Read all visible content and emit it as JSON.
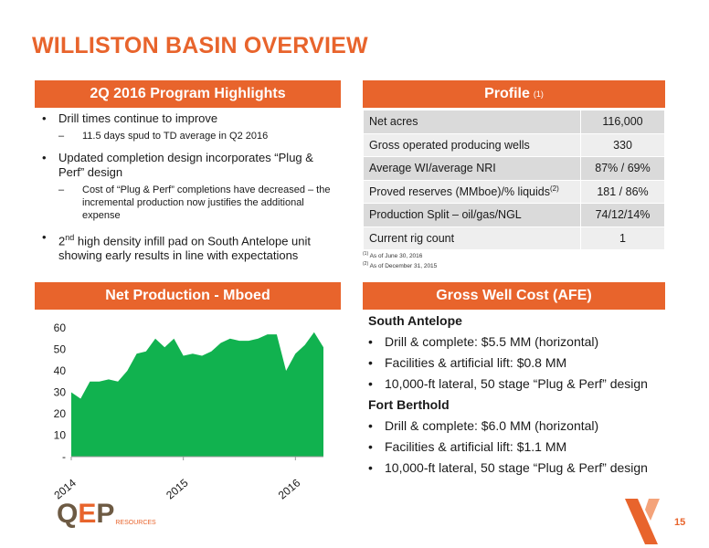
{
  "title": "WILLISTON BASIN OVERVIEW",
  "highlights": {
    "header": "2Q 2016 Program Highlights",
    "items": [
      {
        "text": "Drill times continue to improve",
        "sub": "11.5 days spud to TD average in Q2 2016"
      },
      {
        "text": "Updated completion design incorporates “Plug & Perf” design",
        "sub": "Cost of “Plug & Perf” completions have decreased – the incremental production now justifies the additional expense"
      },
      {
        "text_sup": "nd",
        "text_pre": "2",
        "text": " high density infill pad on South Antelope unit showing early results in line with expectations"
      }
    ]
  },
  "profile": {
    "header": "Profile",
    "header_note": "(1)",
    "rows": [
      {
        "label": "Net acres",
        "value": "116,000"
      },
      {
        "label": "Gross operated producing wells",
        "value": "330"
      },
      {
        "label": "Average WI/average NRI",
        "value": "87% / 69%"
      },
      {
        "label": "Proved reserves (MMboe)/% liquids",
        "label_note": "(2)",
        "value": "181 / 86%"
      },
      {
        "label": "Production Split – oil/gas/NGL",
        "value": "74/12/14%"
      },
      {
        "label": "Current rig count",
        "value": "1"
      }
    ],
    "footnotes": [
      {
        "mark": "(1)",
        "text": "As of June 30, 2016"
      },
      {
        "mark": "(2)",
        "text": "As of December 31, 2015"
      }
    ]
  },
  "production": {
    "header": "Net Production - Mboed"
  },
  "chart_data": {
    "type": "area",
    "title": "",
    "xlabel": "",
    "ylabel": "",
    "ylim": [
      0,
      60
    ],
    "y_ticks": [
      "-",
      "10",
      "20",
      "30",
      "40",
      "50",
      "60"
    ],
    "x_ticks": [
      "2014",
      "2015",
      "2016"
    ],
    "x_tick_index": [
      0,
      12,
      24
    ],
    "color": "#11b24f",
    "grid": false,
    "series": [
      {
        "values": [
          30,
          27,
          35,
          35,
          36,
          35,
          40,
          48,
          49,
          55,
          51,
          55,
          47,
          48,
          47,
          49,
          53,
          55,
          54,
          54,
          55,
          57,
          57,
          40,
          48,
          52,
          58,
          51
        ]
      }
    ]
  },
  "wellcost": {
    "header": "Gross Well Cost (AFE)",
    "sections": [
      {
        "heading": "South Antelope",
        "items": [
          "Drill & complete: $5.5 MM (horizontal)",
          "Facilities & artificial lift: $0.8 MM",
          "10,000-ft lateral, 50 stage “Plug & Perf” design"
        ]
      },
      {
        "heading": "Fort Berthold",
        "items": [
          "Drill & complete: $6.0 MM (horizontal)",
          "Facilities & artificial lift: $1.1 MM",
          "10,000-ft lateral, 50 stage “Plug & Perf” design"
        ]
      }
    ]
  },
  "logo": {
    "q": "Q",
    "e": "E",
    "p": "P",
    "resources": "RESOURCES"
  },
  "page_number": "15",
  "colors": {
    "accent": "#e8642c",
    "chart_fill": "#11b24f",
    "logo_brown": "#6d5a43"
  }
}
